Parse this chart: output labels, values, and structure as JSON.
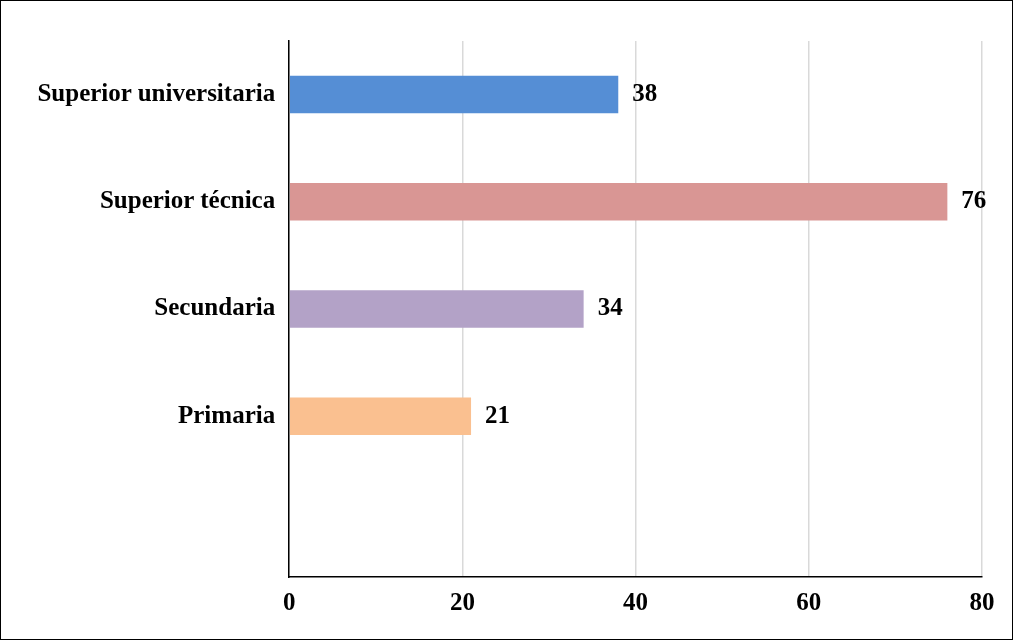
{
  "chart_data": {
    "type": "bar",
    "orientation": "horizontal",
    "categories": [
      "Superior universitaria",
      "Superior técnica",
      "Secundaria",
      "Primaria",
      null
    ],
    "values": [
      38,
      76,
      34,
      21,
      null
    ],
    "colors": [
      "#558ed5",
      "#d99694",
      "#b3a2c7",
      "#fac090",
      "#cccccc"
    ],
    "xlim": [
      0,
      80
    ],
    "xticks": [
      0,
      20,
      40,
      60,
      80
    ],
    "grid": "x",
    "data_labels": true,
    "legend": false
  }
}
